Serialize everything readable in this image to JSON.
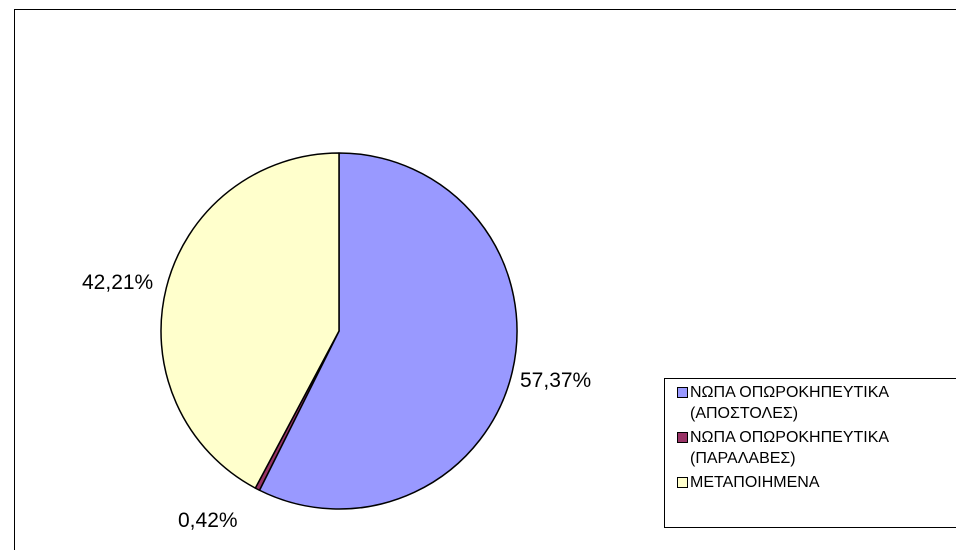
{
  "chart_data": {
    "type": "pie",
    "categories": [
      "ΝΩΠΑ ΟΠΩΡΟΚΗΠΕΥΤΙΚΑ\n(ΑΠΟΣΤΟΛΕΣ)",
      "ΝΩΠΑ ΟΠΩΡΟΚΗΠΕΥΤΙΚΑ\n(ΠΑΡΑΛΑΒΕΣ)",
      "ΜΕΤΑΠΟΙΗΜΕΝΑ"
    ],
    "values": [
      57.37,
      0.42,
      42.21
    ],
    "data_labels": [
      "57,37%",
      "0,42%",
      "42,21%"
    ],
    "colors": [
      "#9999ff",
      "#993366",
      "#ffffcc"
    ],
    "title": "",
    "legend": "right",
    "start_angle": "12 o'clock, clockwise"
  }
}
